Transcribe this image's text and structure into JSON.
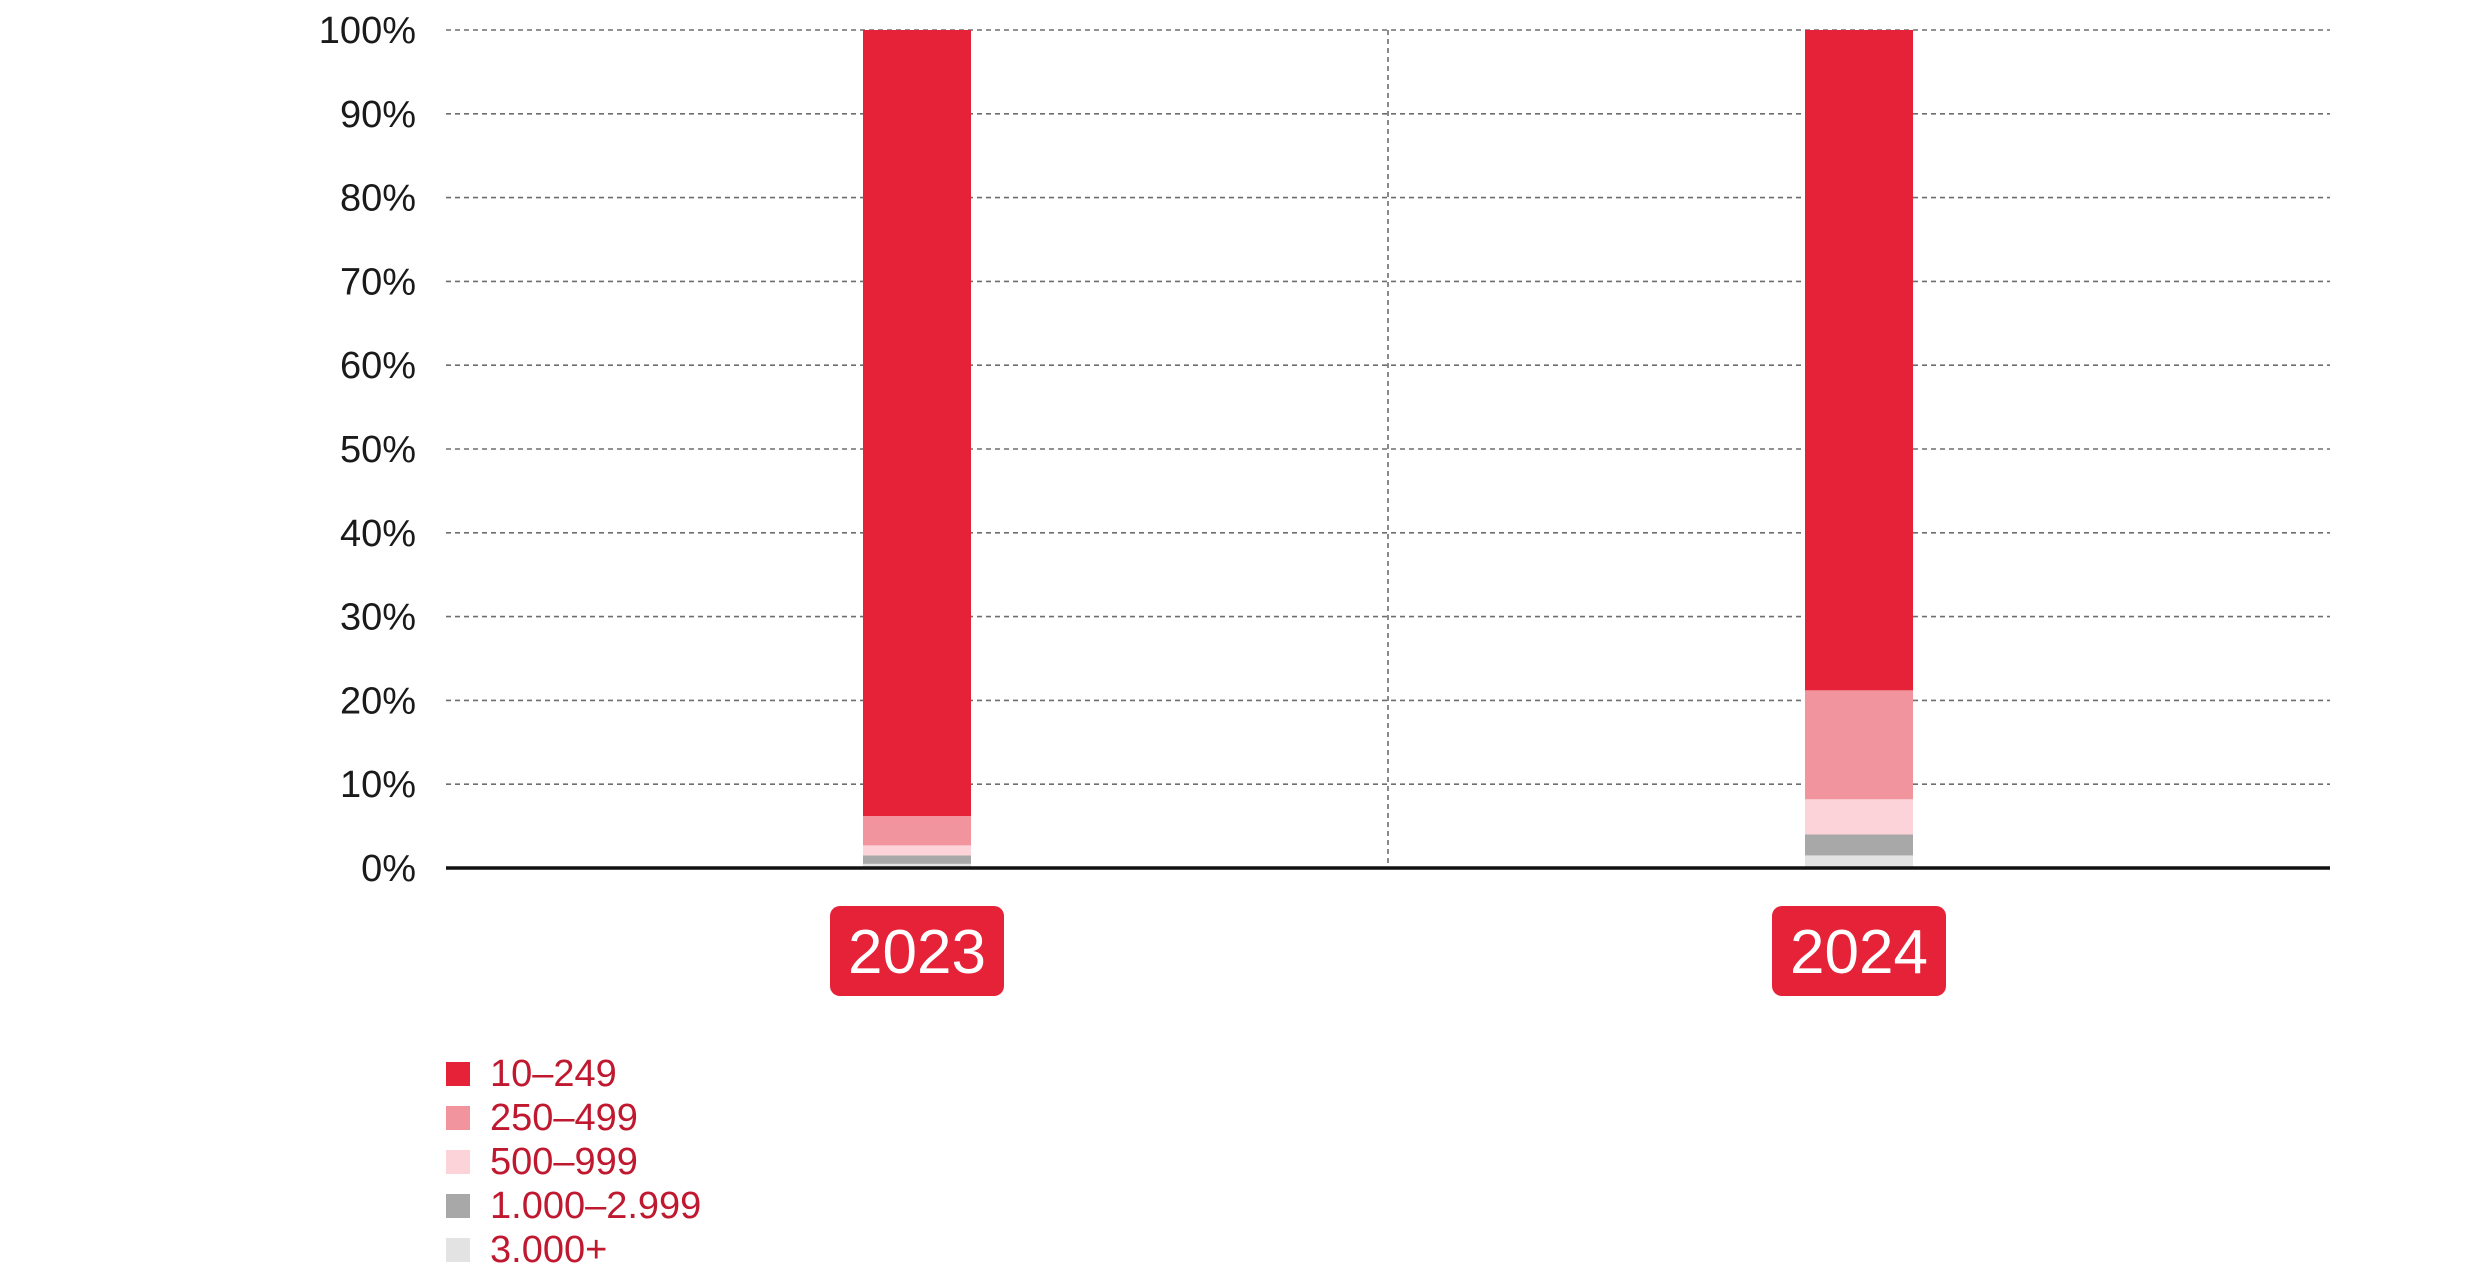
{
  "chart_data": {
    "type": "bar",
    "stacked": true,
    "categories": [
      "2023",
      "2024"
    ],
    "series": [
      {
        "name": "3.000+",
        "color": "#e3e3e3",
        "values": [
          0.5,
          1.5
        ]
      },
      {
        "name": "1.000–2.999",
        "color": "#a8a8a8",
        "values": [
          1.0,
          2.5
        ]
      },
      {
        "name": "500–999",
        "color": "#fbd3d9",
        "values": [
          1.2,
          4.2
        ]
      },
      {
        "name": "250–499",
        "color": "#f1949d",
        "values": [
          3.5,
          13.0
        ]
      },
      {
        "name": "10–249",
        "color": "#e52237",
        "values": [
          93.8,
          78.8
        ]
      }
    ],
    "ylim": [
      0,
      100
    ],
    "yticks": [
      "0%",
      "10%",
      "20%",
      "30%",
      "40%",
      "50%",
      "60%",
      "70%",
      "80%",
      "90%",
      "100%"
    ],
    "grid": true,
    "legend_position": "bottom-left",
    "category_label_bg": "#e52237"
  }
}
